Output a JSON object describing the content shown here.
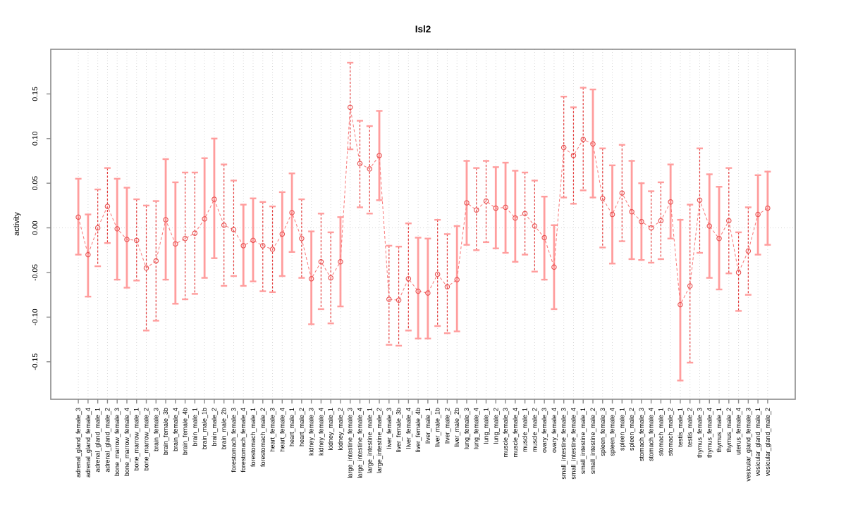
{
  "chart_data": {
    "type": "line",
    "title": "Isl2",
    "xlabel": "",
    "ylabel": "activity",
    "ylim": [
      -0.192,
      0.2
    ],
    "yticks": [
      "-0.15",
      "-0.10",
      "-0.05",
      "0.00",
      "0.05",
      "0.10",
      "0.15"
    ],
    "ytick_values": [
      -0.15,
      -0.1,
      -0.05,
      0.0,
      0.05,
      0.1,
      0.15
    ],
    "grid": "vertical-dotted",
    "zero_line": true,
    "legend": "none",
    "categories": [
      "adrenal_gland_female_3",
      "adrenal_gland_female_4",
      "adrenal_gland_male_1",
      "adrenal_gland_male_2",
      "bone_marrow_female_3",
      "bone_marrow_female_4",
      "bone_marrow_male_1",
      "bone_marrow_male_2",
      "brain_female_3",
      "brain_female_3b",
      "brain_female_4",
      "brain_female_4b",
      "brain_male_1",
      "brain_male_1b",
      "brain_male_2",
      "brain_male_2b",
      "forestomach_female_3",
      "forestomach_female_4",
      "forestomach_male_1",
      "forestomach_male_2",
      "heart_female_3",
      "heart_female_4",
      "heart_male_1",
      "heart_male_2",
      "kidney_female_3",
      "kidney_female_4",
      "kidney_male_1",
      "kidney_male_2",
      "large_intestine_female_3",
      "large_intestine_female_4",
      "large_intestine_male_1",
      "large_intestine_male_2",
      "liver_female_3",
      "liver_female_3b",
      "liver_female_4",
      "liver_female_4b",
      "liver_male_1",
      "liver_male_1b",
      "liver_male_2",
      "liver_male_2b",
      "lung_female_3",
      "lung_female_4",
      "lung_male_1",
      "lung_male_2",
      "muscle_female_3",
      "muscle_female_4",
      "muscle_male_1",
      "muscle_male_2",
      "ovary_female_3",
      "ovary_female_4",
      "small_intestine_female_3",
      "small_intestine_female_4",
      "small_intestine_male_1",
      "small_intestine_male_2",
      "spleen_female_3",
      "spleen_female_4",
      "spleen_male_1",
      "spleen_male_2",
      "stomach_female_3",
      "stomach_female_4",
      "stomach_male_1",
      "stomach_male_2",
      "testis_male_1",
      "testis_male_2",
      "thymus_female_3",
      "thymus_female_4",
      "thymus_male_1",
      "thymus_male_2",
      "uterus_female_4",
      "vesicular_gland_female_3",
      "vesicular_gland_male_1",
      "vesicular_gland_male_2"
    ],
    "series": [
      {
        "name": "activity",
        "values": [
          0.012,
          -0.03,
          0.0,
          0.024,
          -0.001,
          -0.013,
          -0.014,
          -0.045,
          -0.037,
          0.009,
          -0.018,
          -0.012,
          -0.006,
          0.01,
          0.032,
          0.003,
          -0.002,
          -0.02,
          -0.014,
          -0.02,
          -0.024,
          -0.007,
          0.017,
          -0.012,
          -0.057,
          -0.038,
          -0.056,
          -0.038,
          0.135,
          0.072,
          0.066,
          0.081,
          -0.08,
          -0.081,
          -0.057,
          -0.071,
          -0.073,
          -0.052,
          -0.066,
          -0.058,
          0.028,
          0.02,
          0.03,
          0.022,
          0.023,
          0.011,
          0.016,
          0.002,
          -0.011,
          -0.044,
          0.09,
          0.081,
          0.099,
          0.094,
          0.033,
          0.015,
          0.039,
          0.018,
          0.007,
          0.0,
          0.008,
          0.029,
          -0.086,
          -0.065,
          0.031,
          0.002,
          -0.012,
          0.008,
          -0.05,
          -0.026,
          0.015,
          0.022
        ],
        "lower": [
          -0.03,
          -0.077,
          -0.043,
          -0.017,
          -0.058,
          -0.067,
          -0.059,
          -0.115,
          -0.104,
          -0.058,
          -0.085,
          -0.08,
          -0.074,
          -0.056,
          -0.034,
          -0.065,
          -0.054,
          -0.065,
          -0.06,
          -0.071,
          -0.072,
          -0.054,
          -0.027,
          -0.056,
          -0.108,
          -0.091,
          -0.107,
          -0.088,
          0.088,
          0.023,
          0.016,
          0.031,
          -0.131,
          -0.132,
          -0.115,
          -0.124,
          -0.124,
          -0.11,
          -0.118,
          -0.116,
          -0.019,
          -0.025,
          -0.016,
          -0.023,
          -0.028,
          -0.038,
          -0.03,
          -0.049,
          -0.058,
          -0.091,
          0.034,
          0.027,
          0.042,
          0.034,
          -0.022,
          -0.04,
          -0.015,
          -0.035,
          -0.036,
          -0.039,
          -0.035,
          -0.012,
          -0.171,
          -0.151,
          -0.028,
          -0.056,
          -0.069,
          -0.051,
          -0.093,
          -0.075,
          -0.03,
          -0.019
        ],
        "upper": [
          0.055,
          0.015,
          0.043,
          0.067,
          0.055,
          0.045,
          0.032,
          0.025,
          0.03,
          0.077,
          0.051,
          0.062,
          0.062,
          0.078,
          0.1,
          0.071,
          0.053,
          0.026,
          0.033,
          0.029,
          0.024,
          0.04,
          0.061,
          0.032,
          -0.004,
          0.016,
          -0.005,
          0.012,
          0.185,
          0.12,
          0.114,
          0.131,
          -0.02,
          -0.021,
          0.005,
          -0.011,
          -0.012,
          0.009,
          -0.007,
          0.002,
          0.075,
          0.067,
          0.075,
          0.068,
          0.073,
          0.064,
          0.062,
          0.053,
          0.035,
          0.003,
          0.147,
          0.135,
          0.157,
          0.155,
          0.089,
          0.07,
          0.093,
          0.075,
          0.05,
          0.041,
          0.051,
          0.071,
          0.009,
          0.026,
          0.089,
          0.06,
          0.046,
          0.067,
          -0.005,
          0.023,
          0.059,
          0.063
        ],
        "bar_style": [
          "thick",
          "thick",
          "dashed",
          "dashed",
          "thick",
          "thick",
          "dashed",
          "dashed",
          "dashed",
          "thick",
          "thick",
          "dashed",
          "dashed",
          "thick",
          "thick",
          "dashed",
          "dashed",
          "thick",
          "thick",
          "dashed",
          "dashed",
          "thick",
          "thick",
          "dashed",
          "thick",
          "dashed",
          "dashed",
          "thick",
          "dashed",
          "dashed",
          "dashed",
          "thick",
          "dashed",
          "dashed",
          "dashed",
          "thick",
          "thick",
          "dashed",
          "dashed",
          "thick",
          "thick",
          "dashed",
          "dashed",
          "thick",
          "thick",
          "thick",
          "dashed",
          "dashed",
          "thick",
          "thick",
          "dashed",
          "dashed",
          "dashed",
          "thick",
          "dashed",
          "thick",
          "dashed",
          "thick",
          "thick",
          "dashed",
          "dashed",
          "thick",
          "thick",
          "dashed",
          "dashed",
          "thick",
          "thick",
          "dashed",
          "dashed",
          "dashed",
          "thick",
          "thick"
        ]
      }
    ],
    "colors": {
      "point_stroke": "#e85050",
      "bar_thick": "#ff9d9d",
      "bar_dashed": "#e43d3d",
      "cap": "#ff9d9d",
      "connector": "#f87878",
      "grid": "#d6d6d6",
      "zero": "#d6d6d6",
      "frame": "#8a8a8a",
      "text": "#000000"
    }
  }
}
